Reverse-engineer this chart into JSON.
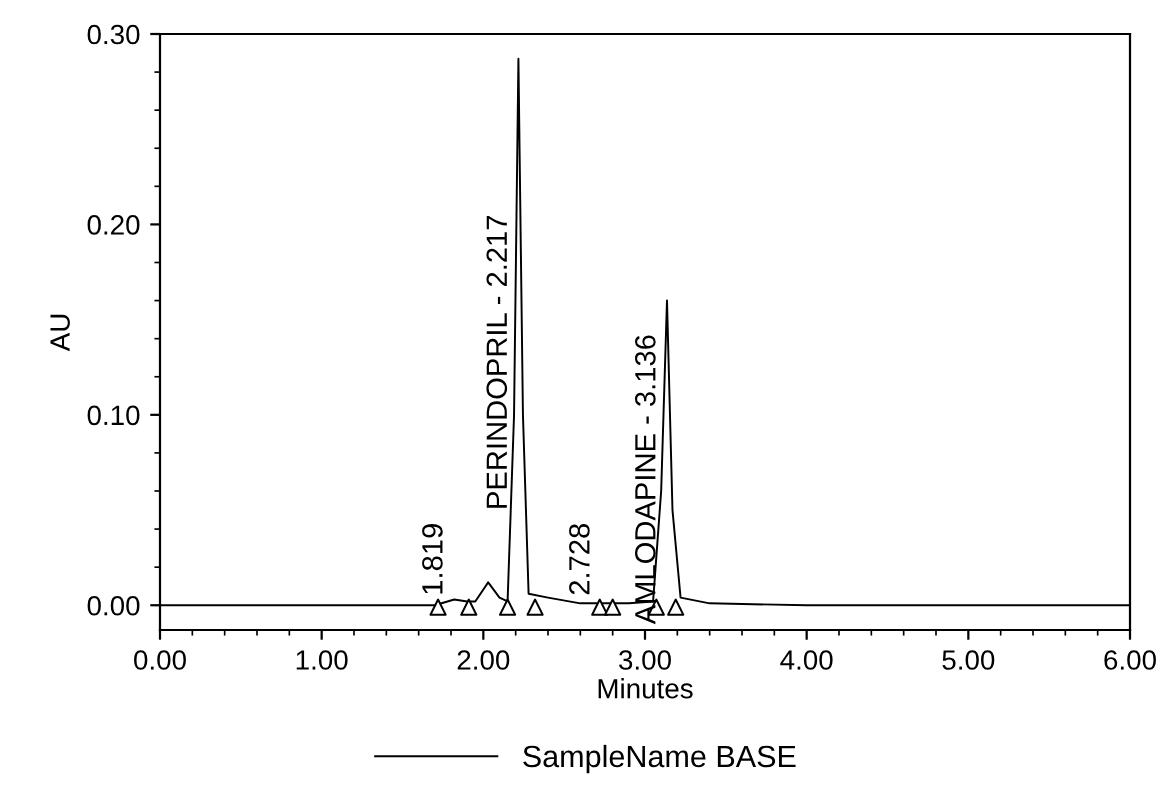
{
  "chart_data": {
    "type": "line",
    "xlabel": "Minutes",
    "ylabel": "AU",
    "xlim": [
      0,
      6
    ],
    "xticks": [
      {
        "value": 0,
        "label": "0.00"
      },
      {
        "value": 1,
        "label": "1.00"
      },
      {
        "value": 2,
        "label": "2.00"
      },
      {
        "value": 3,
        "label": "3.00"
      },
      {
        "value": 4,
        "label": "4.00"
      },
      {
        "value": 5,
        "label": "5.00"
      },
      {
        "value": 6,
        "label": "6.00"
      }
    ],
    "ylim": [
      -0.013,
      0.3
    ],
    "yticks": [
      {
        "value": 0,
        "label": "0.00"
      },
      {
        "value": 0.1,
        "label": "0.10"
      },
      {
        "value": 0.2,
        "label": "0.20"
      },
      {
        "value": 0.3,
        "label": "0.30"
      }
    ],
    "grid": false,
    "legend": "bottom",
    "series": [
      {
        "name": "SampleName BASE",
        "color": "#000000",
        "marker": "none",
        "x": [
          0,
          1.5,
          1.7,
          1.82,
          1.9,
          1.95,
          2.03,
          2.1,
          2.15,
          2.19,
          2.217,
          2.245,
          2.28,
          2.4,
          2.6,
          2.728,
          2.9,
          3.05,
          3.1,
          3.136,
          3.17,
          3.22,
          3.4,
          4,
          6
        ],
        "values": [
          0,
          0,
          0,
          0.003,
          0.002,
          0.002,
          0.012,
          0.004,
          0.002,
          0.1,
          0.287,
          0.1,
          0.006,
          0.004,
          0.001,
          0.001,
          0.001,
          0.002,
          0.06,
          0.16,
          0.05,
          0.004,
          0.001,
          0,
          0
        ]
      },
      {
        "type": "scatter",
        "color": "#000000",
        "marker": "triangle",
        "x": [
          1.72,
          1.91,
          2.15,
          2.32,
          2.72,
          2.8,
          3.07,
          3.19
        ],
        "values": [
          -0.001,
          -0.001,
          -0.001,
          -0.001,
          -0.001,
          -0.001,
          -0.001,
          -0.001
        ]
      }
    ],
    "annotations": [
      {
        "text": "1.819",
        "x": 1.819,
        "y": 0.005
      },
      {
        "text": "PERINDOPRIL - 2.217",
        "x": 2.217,
        "y": 0.05
      },
      {
        "text": "2.728",
        "x": 2.728,
        "y": 0.005
      },
      {
        "text": "AMLODAPINE - 3.136",
        "x": 3.136,
        "y": -0.01
      }
    ]
  }
}
